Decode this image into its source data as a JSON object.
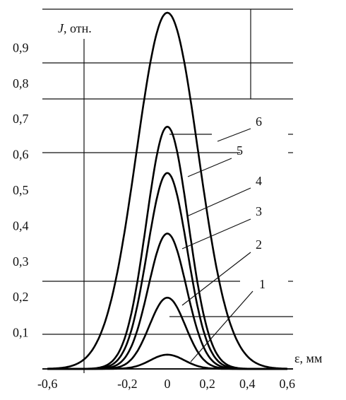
{
  "chart_data": {
    "type": "line",
    "ylabel_italic": "J",
    "ylabel_rest": ", отн.",
    "xlabel": "ε, мм",
    "xlim": [
      -0.6,
      0.6
    ],
    "ylim": [
      0,
      1.0
    ],
    "grid": false,
    "x_tick_labels": [
      "-0,6",
      "-0,2",
      "0",
      "0,2",
      "0,4",
      "0,6"
    ],
    "x_tick_values": [
      -0.6,
      -0.2,
      0,
      0.2,
      0.4,
      0.6
    ],
    "y_tick_labels": [
      "0,1",
      "0,2",
      "0,3",
      "0,4",
      "0,5",
      "0,6",
      "0,7",
      "0,8",
      "0,9"
    ],
    "y_tick_values": [
      0.1,
      0.2,
      0.3,
      0.4,
      0.5,
      0.6,
      0.7,
      0.8,
      0.9
    ],
    "series": [
      {
        "name": "1",
        "peak": 0.04,
        "sigma": 0.085
      },
      {
        "name": "2",
        "peak": 0.2,
        "sigma": 0.09
      },
      {
        "name": "3",
        "peak": 0.38,
        "sigma": 0.095
      },
      {
        "name": "4",
        "peak": 0.55,
        "sigma": 0.1
      },
      {
        "name": "5",
        "peak": 0.68,
        "sigma": 0.105
      },
      {
        "name": "6",
        "peak": 1.0,
        "sigma": 0.155
      }
    ]
  }
}
